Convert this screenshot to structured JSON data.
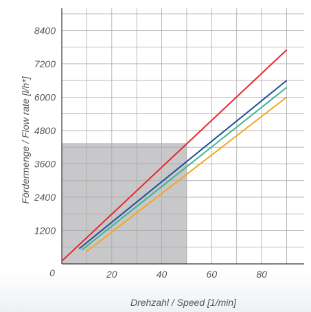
{
  "chart_data": {
    "type": "line",
    "title": "",
    "xlabel": "Drehzahl / Speed [1/min]",
    "ylabel": "Fördermenge / Flow rate [l/h*]",
    "xlim": [
      0,
      97
    ],
    "ylim": [
      0,
      9200
    ],
    "x_ticks": [
      0,
      20,
      40,
      60,
      80
    ],
    "x_tick_labels": [
      "0",
      "20",
      "40",
      "60",
      "80"
    ],
    "y_ticks": [
      1200,
      2400,
      3600,
      4800,
      6000,
      7200,
      8400
    ],
    "y_tick_labels": [
      "1200",
      "2400",
      "3600",
      "4800",
      "6000",
      "7200",
      "8400"
    ],
    "grid": true,
    "shaded_region": {
      "x": [
        0,
        50
      ],
      "y": [
        0,
        4350
      ],
      "color": "#c8c8ca"
    },
    "series": [
      {
        "color": "#e8262d",
        "x": [
          0,
          90
        ],
        "y": [
          100,
          7700
        ]
      },
      {
        "color": "#1f4e9c",
        "x": [
          7,
          90
        ],
        "y": [
          550,
          6600
        ]
      },
      {
        "color": "#3db58f",
        "x": [
          8,
          90
        ],
        "y": [
          500,
          6350
        ]
      },
      {
        "color": "#f5a623",
        "x": [
          10,
          90
        ],
        "y": [
          450,
          6000
        ]
      }
    ]
  }
}
